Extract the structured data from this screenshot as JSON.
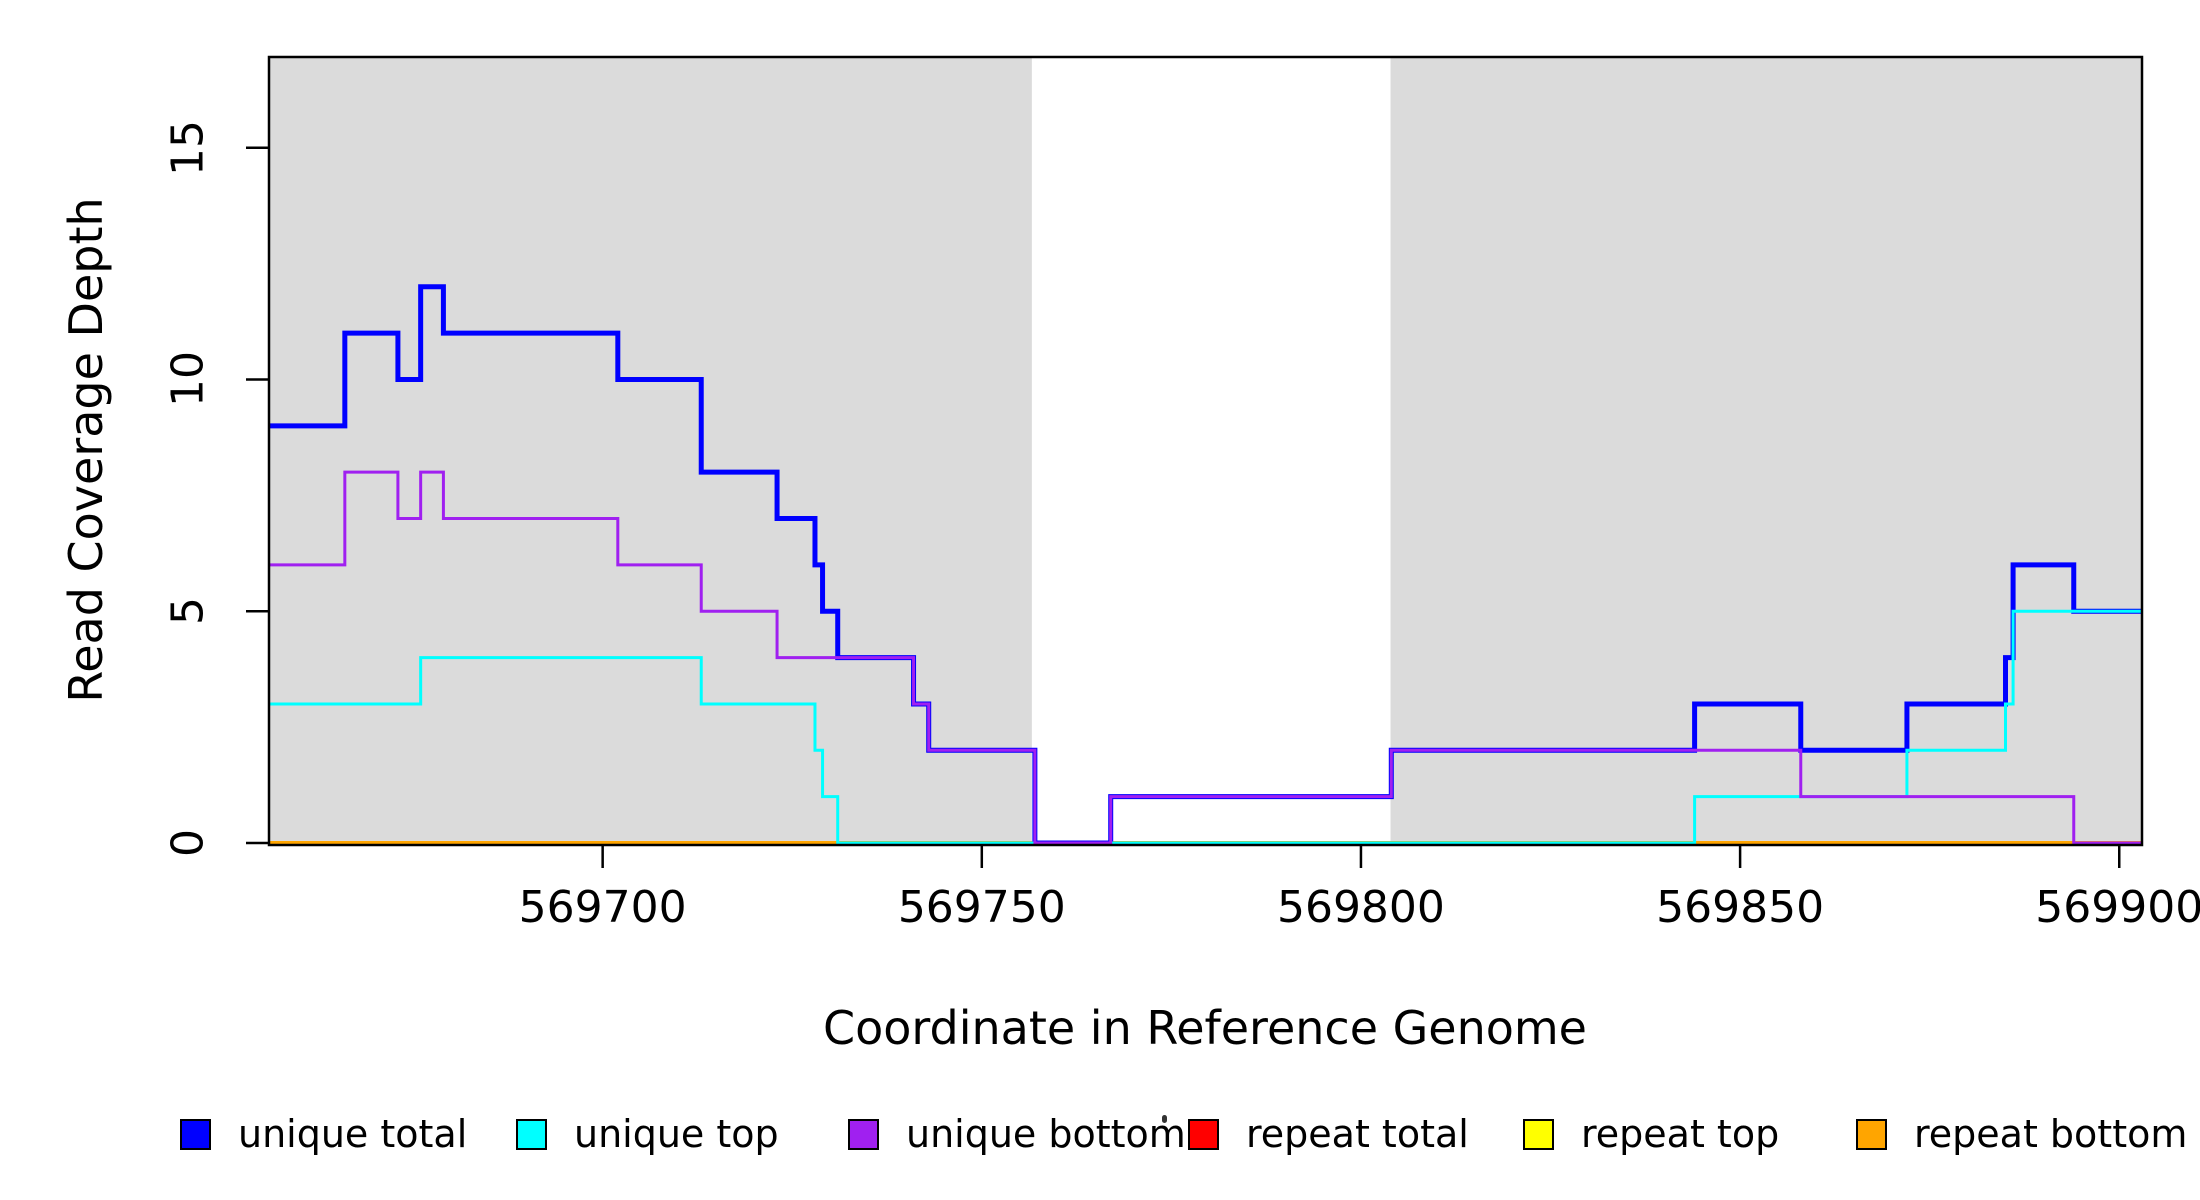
{
  "chart_data": {
    "type": "line",
    "subtype": "step-post",
    "title": "",
    "xlabel": "Coordinate in Reference Genome",
    "ylabel": "Read Coverage Depth",
    "xlim": [
      569656,
      569903
    ],
    "ylim": [
      0,
      17
    ],
    "grid": false,
    "background_shading": {
      "color": "#DBDBDB",
      "regions": [
        {
          "x1": 569656,
          "x2": 569756.6
        },
        {
          "x1": 569803.9,
          "x2": 569903
        }
      ],
      "note": "gray = repeat-masked flanks; white gap between 569756 and 569804"
    },
    "xticks": [
      {
        "value": 569700,
        "label": "569700"
      },
      {
        "value": 569750,
        "label": "569750"
      },
      {
        "value": 569800,
        "label": "569800"
      },
      {
        "value": 569850,
        "label": "569850"
      },
      {
        "value": 569900,
        "label": "569900"
      }
    ],
    "yticks": [
      {
        "value": 0,
        "label": "0"
      },
      {
        "value": 5,
        "label": "5"
      },
      {
        "value": 10,
        "label": "10"
      },
      {
        "value": 15,
        "label": "15"
      }
    ],
    "legend_position": "bottom",
    "series": [
      {
        "name": "unique total",
        "color": "#0000FF",
        "line_width": 5,
        "steps": [
          [
            569656,
            9
          ],
          [
            569666,
            11
          ],
          [
            569673,
            10
          ],
          [
            569676,
            12
          ],
          [
            569679,
            11
          ],
          [
            569702,
            10
          ],
          [
            569713,
            8
          ],
          [
            569723,
            7
          ],
          [
            569728,
            6
          ],
          [
            569729,
            5
          ],
          [
            569731,
            4
          ],
          [
            569741,
            3
          ],
          [
            569743,
            2
          ],
          [
            569757,
            0
          ],
          [
            569767,
            1
          ],
          [
            569804,
            2
          ],
          [
            569844,
            3
          ],
          [
            569858,
            2
          ],
          [
            569872,
            3
          ],
          [
            569885,
            4
          ],
          [
            569886,
            6
          ],
          [
            569894,
            5
          ]
        ]
      },
      {
        "name": "unique top",
        "color": "#00FFFF",
        "line_width": 3,
        "steps": [
          [
            569656,
            3
          ],
          [
            569676,
            4
          ],
          [
            569713,
            3
          ],
          [
            569728,
            2
          ],
          [
            569729,
            1
          ],
          [
            569731,
            0
          ],
          [
            569844,
            1
          ],
          [
            569872,
            2
          ],
          [
            569885,
            3
          ],
          [
            569886,
            5
          ]
        ]
      },
      {
        "name": "unique bottom",
        "color": "#A020F0",
        "line_width": 3,
        "steps": [
          [
            569656,
            6
          ],
          [
            569666,
            8
          ],
          [
            569673,
            7
          ],
          [
            569676,
            8
          ],
          [
            569679,
            7
          ],
          [
            569702,
            6
          ],
          [
            569713,
            5
          ],
          [
            569723,
            4
          ],
          [
            569741,
            3
          ],
          [
            569743,
            2
          ],
          [
            569757,
            0
          ],
          [
            569767,
            1
          ],
          [
            569804,
            2
          ],
          [
            569858,
            1
          ],
          [
            569894,
            0
          ]
        ]
      },
      {
        "name": "repeat total",
        "color": "#FF0000",
        "line_width": 3.5,
        "steps": [
          [
            569656,
            0
          ]
        ]
      },
      {
        "name": "repeat top",
        "color": "#FFFF00",
        "line_width": 3.5,
        "steps": [
          [
            569656,
            0
          ]
        ]
      },
      {
        "name": "repeat bottom",
        "color": "#FFA500",
        "line_width": 4,
        "steps": [
          [
            569656,
            0
          ]
        ]
      }
    ],
    "draw_order": [
      3,
      4,
      5,
      0,
      1,
      2
    ]
  }
}
